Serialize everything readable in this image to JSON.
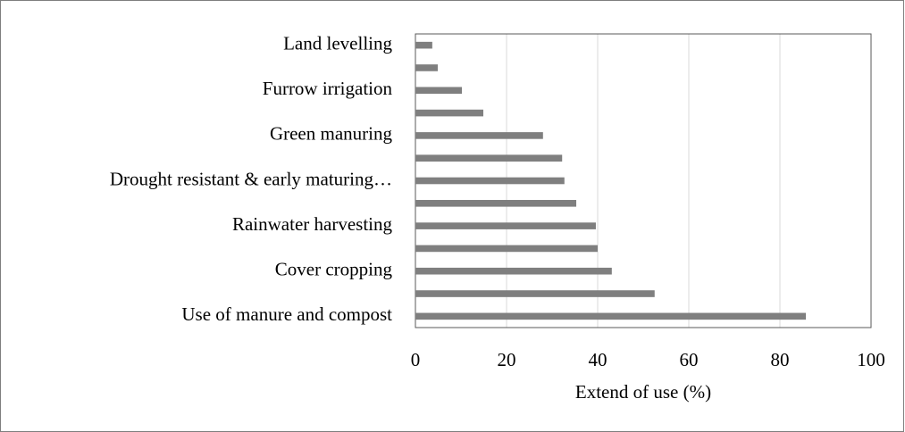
{
  "chart_data": {
    "type": "bar",
    "orientation": "horizontal",
    "categories": [
      "Land levelling",
      null,
      "Furrow irrigation",
      null,
      "Green manuring",
      null,
      "Drought resistant & early maturing…",
      null,
      "Rainwater harvesting",
      null,
      "Cover cropping",
      null,
      "Use of manure and compost"
    ],
    "values": [
      3.7,
      4.9,
      10.2,
      14.9,
      28,
      32.2,
      32.7,
      35.3,
      39.6,
      40,
      43.1,
      52.5,
      85.7
    ],
    "color": "#7f7f7f",
    "xlabel": "Extend of use (%)",
    "xlim": [
      0,
      100
    ],
    "xticks": [
      0,
      20,
      40,
      60,
      80,
      100
    ],
    "grid": true
  }
}
